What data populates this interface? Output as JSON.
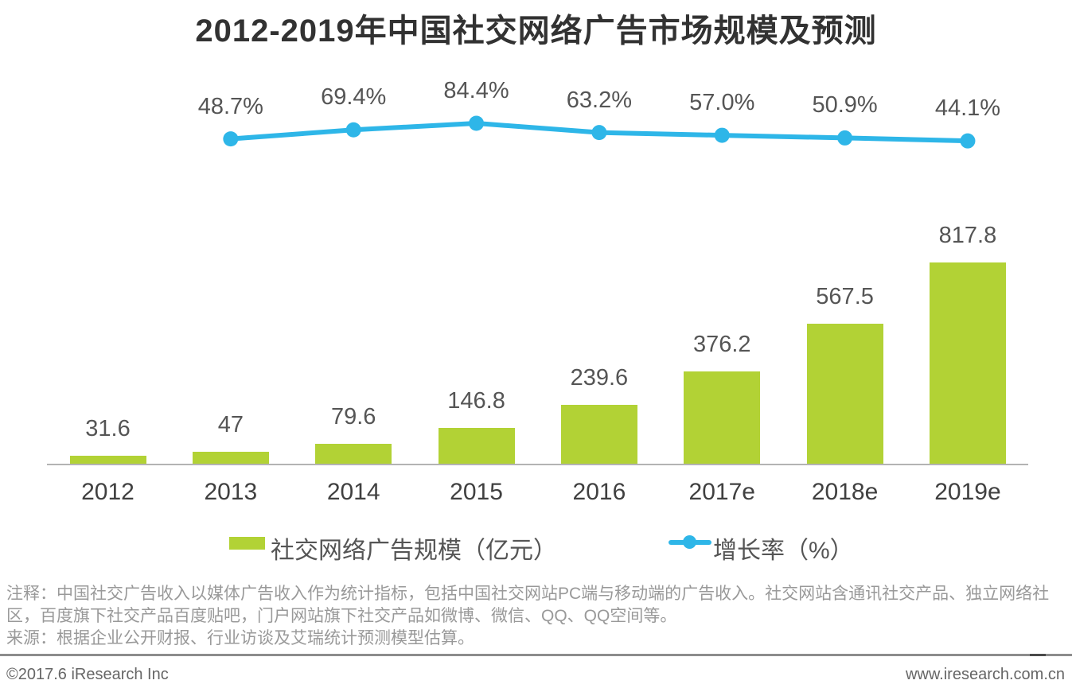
{
  "title": "2012-2019年中国社交网络广告市场规模及预测",
  "chart_data": {
    "type": "bar+line combo",
    "title": "2012-2019年中国社交网络广告市场规模及预测",
    "categories": [
      "2012",
      "2013",
      "2014",
      "2015",
      "2016",
      "2017e",
      "2018e",
      "2019e"
    ],
    "series": [
      {
        "name": "社交网络广告规模（亿元）",
        "type": "bar",
        "color": "#b2d235",
        "values": [
          31.6,
          47,
          79.6,
          146.8,
          239.6,
          376.2,
          567.5,
          817.8
        ],
        "labels": [
          "31.6",
          "47",
          "79.6",
          "146.8",
          "239.6",
          "376.2",
          "567.5",
          "817.8"
        ]
      },
      {
        "name": "增长率（%）",
        "type": "line",
        "color": "#2eb6e8",
        "points": [
          {
            "category": "2013",
            "value": 48.7,
            "label": "48.7%"
          },
          {
            "category": "2014",
            "value": 69.4,
            "label": "69.4%"
          },
          {
            "category": "2015",
            "value": 84.4,
            "label": "84.4%"
          },
          {
            "category": "2016",
            "value": 63.2,
            "label": "63.2%"
          },
          {
            "category": "2017e",
            "value": 57.0,
            "label": "57.0%"
          },
          {
            "category": "2018e",
            "value": 50.9,
            "label": "50.9%"
          },
          {
            "category": "2019e",
            "value": 44.1,
            "label": "44.1%"
          }
        ]
      }
    ],
    "axes": {
      "x_labels": [
        "2012",
        "2013",
        "2014",
        "2015",
        "2016",
        "2017e",
        "2018e",
        "2019e"
      ],
      "y_axis_visible": false,
      "grid": false
    },
    "legend_position": "bottom"
  },
  "legend": {
    "bar_label": "社交网络广告规模（亿元）",
    "line_label": "增长率（%）"
  },
  "notes": {
    "annotation": "注释：中国社交广告收入以媒体广告收入作为统计指标，包括中国社交网站PC端与移动端的广告收入。社交网站含通讯社交产品、独立网络社区，百度旗下社交产品百度贴吧，门户网站旗下社交产品如微博、微信、QQ、QQ空间等。",
    "source": "来源：根据企业公开财报、行业访谈及艾瑞统计预测模型估算。"
  },
  "footer": {
    "left": "©2017.6 iResearch Inc",
    "right": "www.iresearch.com.cn"
  },
  "colors": {
    "bar_green": "#b2d235",
    "line_blue": "#2eb6e8",
    "title_text": "#323232",
    "label_text": "#555555",
    "axis_line": "#b3b3b3",
    "note_text": "#999999",
    "footer_text": "#666666"
  }
}
